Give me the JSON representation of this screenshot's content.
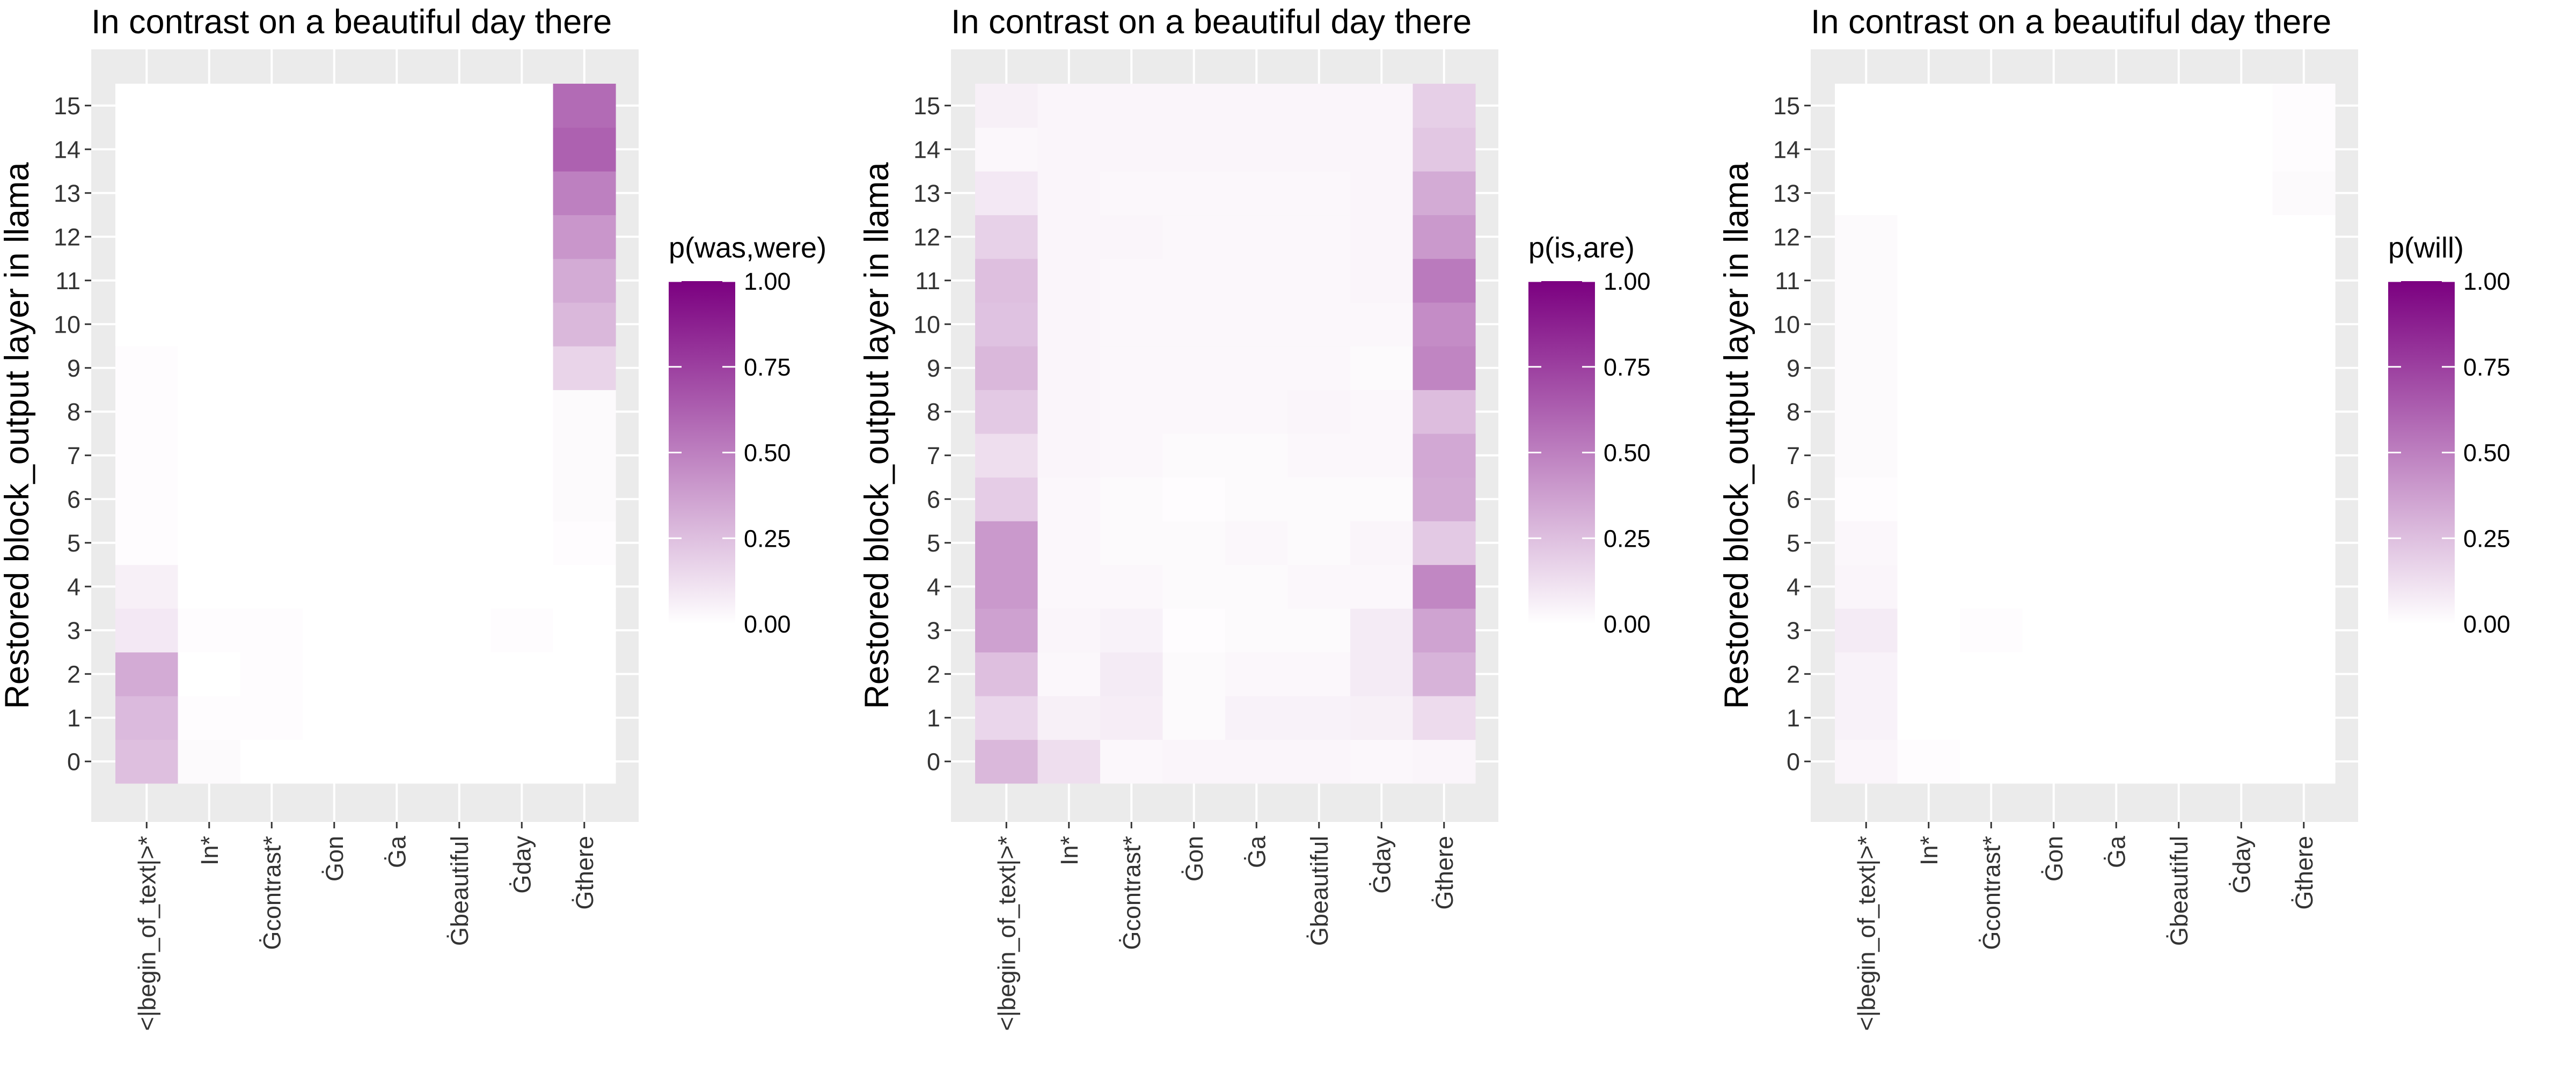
{
  "chart_data": [
    {
      "type": "heatmap",
      "title": "In contrast on a beautiful day there",
      "ylabel": "Restored block_output layer in llama",
      "xlabel": "",
      "x": [
        "<|begin_of_text|>*",
        "In*",
        "Ġcontrast*",
        "Ġon",
        "Ġa",
        "Ġbeautiful",
        "Ġday",
        "Ġthere"
      ],
      "y": [
        0,
        1,
        2,
        3,
        4,
        5,
        6,
        7,
        8,
        9,
        10,
        11,
        12,
        13,
        14,
        15
      ],
      "legend_title": "p(was,were)",
      "scale": {
        "min": 0,
        "max": 1,
        "breaks": [
          "0.00",
          "0.25",
          "0.50",
          "0.75",
          "1.00"
        ],
        "low_color": "#ffffff",
        "high_color": "#7b0080"
      },
      "grid": true,
      "legend_position": "right",
      "values": [
        [
          0.25,
          0.02,
          0.0,
          0.0,
          0.0,
          0.0,
          0.0,
          0.0
        ],
        [
          0.27,
          0.01,
          0.01,
          0.0,
          0.0,
          0.0,
          0.0,
          0.0
        ],
        [
          0.33,
          0.0,
          0.01,
          0.0,
          0.0,
          0.0,
          0.0,
          0.0
        ],
        [
          0.09,
          0.01,
          0.01,
          0.0,
          0.0,
          0.0,
          0.01,
          0.0
        ],
        [
          0.06,
          0.0,
          0.0,
          0.0,
          0.0,
          0.0,
          0.0,
          0.0
        ],
        [
          0.01,
          0.0,
          0.0,
          0.0,
          0.0,
          0.0,
          0.0,
          0.01
        ],
        [
          0.01,
          0.0,
          0.0,
          0.0,
          0.0,
          0.0,
          0.0,
          0.02
        ],
        [
          0.01,
          0.0,
          0.0,
          0.0,
          0.0,
          0.0,
          0.0,
          0.02
        ],
        [
          0.01,
          0.0,
          0.0,
          0.0,
          0.0,
          0.0,
          0.0,
          0.02
        ],
        [
          0.01,
          0.0,
          0.0,
          0.0,
          0.0,
          0.0,
          0.0,
          0.17
        ],
        [
          0.0,
          0.0,
          0.0,
          0.0,
          0.0,
          0.0,
          0.0,
          0.28
        ],
        [
          0.0,
          0.0,
          0.0,
          0.0,
          0.0,
          0.0,
          0.0,
          0.33
        ],
        [
          0.0,
          0.0,
          0.0,
          0.0,
          0.0,
          0.0,
          0.0,
          0.41
        ],
        [
          0.0,
          0.0,
          0.0,
          0.0,
          0.0,
          0.0,
          0.0,
          0.5
        ],
        [
          0.0,
          0.0,
          0.0,
          0.0,
          0.0,
          0.0,
          0.0,
          0.62
        ],
        [
          0.0,
          0.0,
          0.0,
          0.0,
          0.0,
          0.0,
          0.0,
          0.58
        ]
      ]
    },
    {
      "type": "heatmap",
      "title": "In contrast on a beautiful day there",
      "ylabel": "Restored block_output layer in llama",
      "xlabel": "",
      "x": [
        "<|begin_of_text|>*",
        "In*",
        "Ġcontrast*",
        "Ġon",
        "Ġa",
        "Ġbeautiful",
        "Ġday",
        "Ġthere"
      ],
      "y": [
        0,
        1,
        2,
        3,
        4,
        5,
        6,
        7,
        8,
        9,
        10,
        11,
        12,
        13,
        14,
        15
      ],
      "legend_title": "p(is,are)",
      "scale": {
        "min": 0,
        "max": 1,
        "breaks": [
          "0.00",
          "0.25",
          "0.50",
          "0.75",
          "1.00"
        ],
        "low_color": "#ffffff",
        "high_color": "#7b0080"
      },
      "grid": true,
      "legend_position": "right",
      "values": [
        [
          0.28,
          0.13,
          0.03,
          0.04,
          0.04,
          0.04,
          0.03,
          0.04
        ],
        [
          0.16,
          0.06,
          0.07,
          0.02,
          0.05,
          0.05,
          0.06,
          0.14
        ],
        [
          0.25,
          0.03,
          0.08,
          0.02,
          0.03,
          0.03,
          0.08,
          0.3
        ],
        [
          0.37,
          0.04,
          0.05,
          0.01,
          0.02,
          0.02,
          0.08,
          0.36
        ],
        [
          0.4,
          0.03,
          0.03,
          0.02,
          0.02,
          0.03,
          0.03,
          0.47
        ],
        [
          0.4,
          0.03,
          0.02,
          0.02,
          0.03,
          0.02,
          0.04,
          0.21
        ],
        [
          0.2,
          0.03,
          0.02,
          0.01,
          0.02,
          0.02,
          0.02,
          0.33
        ],
        [
          0.13,
          0.04,
          0.03,
          0.02,
          0.02,
          0.03,
          0.03,
          0.34
        ],
        [
          0.21,
          0.04,
          0.03,
          0.03,
          0.03,
          0.04,
          0.03,
          0.26
        ],
        [
          0.28,
          0.04,
          0.03,
          0.03,
          0.03,
          0.03,
          0.02,
          0.48
        ],
        [
          0.24,
          0.04,
          0.03,
          0.03,
          0.03,
          0.03,
          0.03,
          0.45
        ],
        [
          0.25,
          0.04,
          0.03,
          0.03,
          0.03,
          0.03,
          0.04,
          0.52
        ],
        [
          0.18,
          0.04,
          0.04,
          0.03,
          0.03,
          0.03,
          0.04,
          0.4
        ],
        [
          0.09,
          0.04,
          0.03,
          0.03,
          0.03,
          0.03,
          0.04,
          0.33
        ],
        [
          0.03,
          0.04,
          0.04,
          0.04,
          0.04,
          0.04,
          0.04,
          0.22
        ],
        [
          0.06,
          0.04,
          0.04,
          0.04,
          0.04,
          0.04,
          0.04,
          0.19
        ]
      ]
    },
    {
      "type": "heatmap",
      "title": "In contrast on a beautiful day there",
      "ylabel": "Restored block_output layer in llama",
      "xlabel": "",
      "x": [
        "<|begin_of_text|>*",
        "In*",
        "Ġcontrast*",
        "Ġon",
        "Ġa",
        "Ġbeautiful",
        "Ġday",
        "Ġthere"
      ],
      "y": [
        0,
        1,
        2,
        3,
        4,
        5,
        6,
        7,
        8,
        9,
        10,
        11,
        12,
        13,
        14,
        15
      ],
      "legend_title": "p(will)",
      "scale": {
        "min": 0,
        "max": 1,
        "breaks": [
          "0.00",
          "0.25",
          "0.50",
          "0.75",
          "1.00"
        ],
        "low_color": "#ffffff",
        "high_color": "#7b0080"
      },
      "grid": true,
      "legend_position": "right",
      "values": [
        [
          0.04,
          0.01,
          0.0,
          0.0,
          0.0,
          0.0,
          0.0,
          0.0
        ],
        [
          0.05,
          0.0,
          0.0,
          0.0,
          0.0,
          0.0,
          0.0,
          0.0
        ],
        [
          0.05,
          0.0,
          0.0,
          0.0,
          0.0,
          0.0,
          0.0,
          0.0
        ],
        [
          0.08,
          0.0,
          0.01,
          0.0,
          0.0,
          0.0,
          0.0,
          0.0
        ],
        [
          0.04,
          0.0,
          0.0,
          0.0,
          0.0,
          0.0,
          0.0,
          0.0
        ],
        [
          0.03,
          0.0,
          0.0,
          0.0,
          0.0,
          0.0,
          0.0,
          0.0
        ],
        [
          0.01,
          0.0,
          0.0,
          0.0,
          0.0,
          0.0,
          0.0,
          0.0
        ],
        [
          0.02,
          0.0,
          0.0,
          0.0,
          0.0,
          0.0,
          0.0,
          0.0
        ],
        [
          0.02,
          0.0,
          0.0,
          0.0,
          0.0,
          0.0,
          0.0,
          0.0
        ],
        [
          0.02,
          0.0,
          0.0,
          0.0,
          0.0,
          0.0,
          0.0,
          0.0
        ],
        [
          0.02,
          0.0,
          0.0,
          0.0,
          0.0,
          0.0,
          0.0,
          0.0
        ],
        [
          0.02,
          0.0,
          0.0,
          0.0,
          0.0,
          0.0,
          0.0,
          0.0
        ],
        [
          0.02,
          0.0,
          0.0,
          0.0,
          0.0,
          0.0,
          0.0,
          0.0
        ],
        [
          0.0,
          0.0,
          0.0,
          0.0,
          0.0,
          0.0,
          0.0,
          0.02
        ],
        [
          0.0,
          0.0,
          0.0,
          0.0,
          0.0,
          0.0,
          0.0,
          0.01
        ],
        [
          0.0,
          0.0,
          0.0,
          0.0,
          0.0,
          0.0,
          0.0,
          0.01
        ]
      ]
    }
  ],
  "colors": {
    "panel_background": "#ebebeb",
    "grid_line": "#ffffff",
    "tick_mark": "#333333",
    "scale_low": "#ffffff",
    "scale_high": "#7b0080"
  }
}
